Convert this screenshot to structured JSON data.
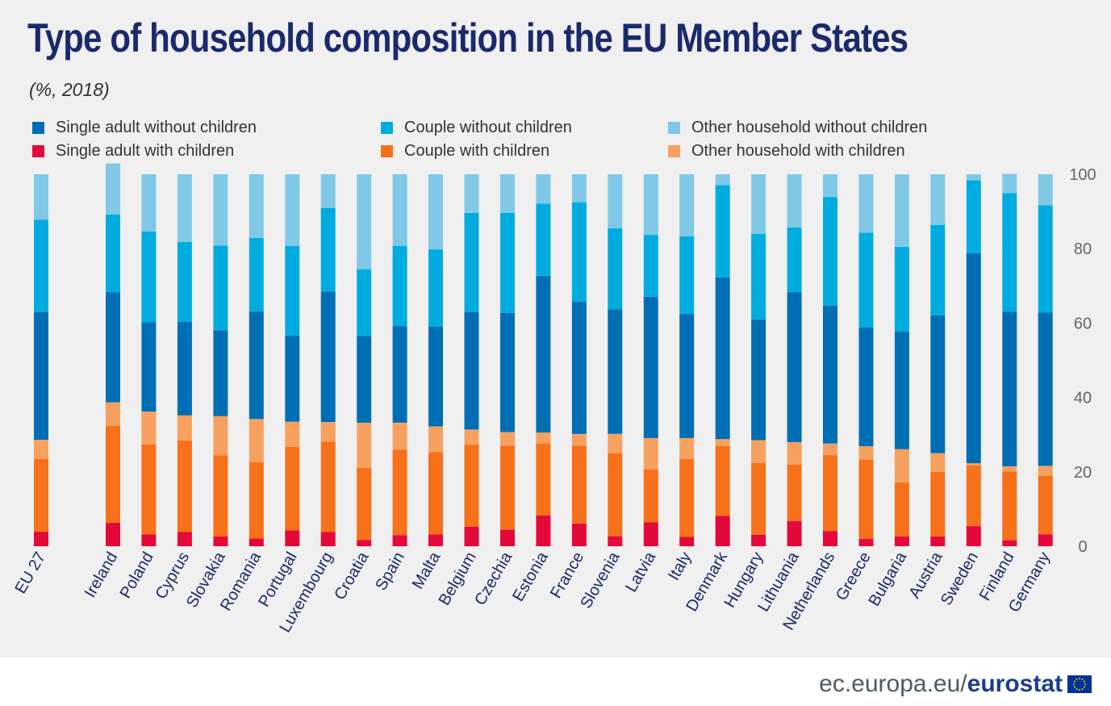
{
  "title": "Type of household composition in the EU Member States",
  "subtitle": "(%, 2018)",
  "legend": {
    "items": [
      {
        "label": "Single adult without children",
        "color": "#006eb4"
      },
      {
        "label": "Single adult with children",
        "color": "#e3093a"
      },
      {
        "label": "Couple without children",
        "color": "#00acdf"
      },
      {
        "label": "Couple with children",
        "color": "#f6711a"
      },
      {
        "label": "Other household without children",
        "color": "#80c9e6"
      },
      {
        "label": "Other household with children",
        "color": "#f7a160"
      }
    ]
  },
  "footer": {
    "domain": "ec.europa.eu/",
    "brand": "eurostat",
    "flag_icon": "eu-flag-icon"
  },
  "chart_data": {
    "type": "bar",
    "stacked": true,
    "categories": [
      "EU 27",
      "Ireland",
      "Poland",
      "Cyprus",
      "Slovakia",
      "Romania",
      "Portugal",
      "Luxembourg",
      "Croatia",
      "Spain",
      "Malta",
      "Belgium",
      "Czechia",
      "Estonia",
      "France",
      "Slovenia",
      "Latvia",
      "Italy",
      "Denmark",
      "Hungary",
      "Lithuania",
      "Netherlands",
      "Greece",
      "Bulgaria",
      "Austria",
      "Sweden",
      "Finland",
      "Germany"
    ],
    "series": [
      {
        "name": "Single adult with children",
        "color": "#e3093a",
        "values": [
          3.9,
          6.3,
          3.2,
          3.8,
          2.6,
          2.1,
          4.3,
          3.8,
          1.7,
          3.0,
          3.2,
          5.2,
          4.5,
          8.3,
          6.1,
          2.7,
          6.4,
          2.5,
          8.2,
          3.1,
          6.8,
          4.1,
          2.0,
          2.6,
          2.6,
          5.4,
          1.6,
          3.2
        ]
      },
      {
        "name": "Couple with children",
        "color": "#f6711a",
        "values": [
          19.6,
          26.1,
          24.2,
          24.6,
          21.8,
          20.5,
          22.4,
          24.3,
          19.4,
          23.0,
          22.1,
          22.1,
          22.5,
          19.4,
          20.9,
          22.3,
          14.2,
          21.0,
          18.7,
          19.3,
          15.1,
          20.4,
          21.3,
          14.6,
          17.4,
          16.3,
          18.5,
          15.8
        ]
      },
      {
        "name": "Other household with children",
        "color": "#f7a160",
        "values": [
          5.1,
          6.3,
          8.8,
          6.8,
          10.6,
          11.6,
          6.8,
          5.3,
          12.1,
          7.2,
          6.9,
          4.1,
          3.7,
          2.9,
          3.2,
          5.2,
          8.5,
          5.6,
          1.9,
          6.1,
          6.1,
          3.1,
          3.6,
          8.9,
          5.0,
          0.6,
          1.4,
          2.6
        ]
      },
      {
        "name": "Single adult without children",
        "color": "#006eb4",
        "values": [
          34.3,
          29.6,
          24.0,
          25.2,
          23.1,
          28.9,
          23.1,
          35.1,
          23.3,
          25.9,
          26.8,
          31.6,
          32.0,
          42.1,
          35.6,
          33.5,
          38.0,
          33.4,
          43.5,
          32.5,
          40.3,
          37.1,
          31.9,
          31.6,
          37.1,
          56.5,
          41.6,
          41.2
        ]
      },
      {
        "name": "Couple without children",
        "color": "#00acdf",
        "values": [
          24.9,
          20.9,
          24.4,
          21.4,
          22.7,
          19.8,
          24.1,
          22.4,
          18.0,
          21.6,
          20.8,
          26.6,
          26.9,
          19.4,
          26.7,
          21.8,
          16.6,
          20.8,
          24.8,
          23.0,
          17.4,
          29.2,
          25.5,
          22.8,
          24.3,
          19.6,
          31.8,
          28.9
        ]
      },
      {
        "name": "Other household without children",
        "color": "#80c9e6",
        "values": [
          12.2,
          13.7,
          15.4,
          18.2,
          19.2,
          17.1,
          19.3,
          9.1,
          25.5,
          19.3,
          20.2,
          10.4,
          10.4,
          7.9,
          7.5,
          14.5,
          16.3,
          16.7,
          2.9,
          16.0,
          14.3,
          6.1,
          15.7,
          19.5,
          13.6,
          1.6,
          5.2,
          8.3
        ]
      }
    ],
    "yticks": [
      "0",
      "20",
      "40",
      "60",
      "80",
      "100"
    ],
    "ylim": [
      0,
      100
    ],
    "axis_side": "right",
    "grid": false,
    "legend_position": "top"
  }
}
